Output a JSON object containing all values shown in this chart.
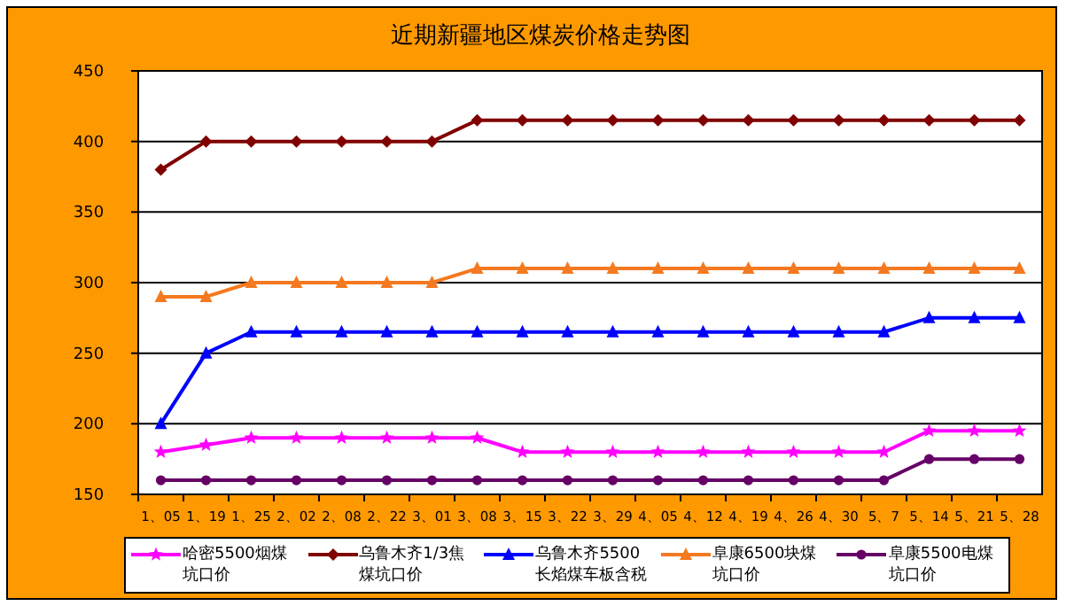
{
  "chart_data": {
    "type": "line",
    "title": "近期新疆地区煤炭价格走势图",
    "categories": [
      "1、05",
      "1、19",
      "1、25",
      "2、02",
      "2、08",
      "2、22",
      "3、01",
      "3、08",
      "3、15",
      "3、22",
      "3、29",
      "4、05",
      "4、12",
      "4、19",
      "4、26",
      "4、30",
      "5、7",
      "5、14",
      "5、21",
      "5、28"
    ],
    "series": [
      {
        "name": "哈密5500烟煤坑口价",
        "color": "#ff00ff",
        "marker": "star",
        "values": [
          180,
          185,
          190,
          190,
          190,
          190,
          190,
          190,
          180,
          180,
          180,
          180,
          180,
          180,
          180,
          180,
          180,
          195,
          195,
          195
        ]
      },
      {
        "name": "乌鲁木齐1/3焦煤坑口价",
        "color": "#800000",
        "marker": "diamond",
        "values": [
          380,
          400,
          400,
          400,
          400,
          400,
          400,
          415,
          415,
          415,
          415,
          415,
          415,
          415,
          415,
          415,
          415,
          415,
          415,
          415
        ]
      },
      {
        "name": "乌鲁木齐5500长焰煤车板含税",
        "color": "#0000ff",
        "marker": "triangle",
        "values": [
          200,
          250,
          265,
          265,
          265,
          265,
          265,
          265,
          265,
          265,
          265,
          265,
          265,
          265,
          265,
          265,
          265,
          275,
          275,
          275
        ]
      },
      {
        "name": "阜康6500块煤坑口价",
        "color": "#f47920",
        "marker": "triangle",
        "values": [
          290,
          290,
          300,
          300,
          300,
          300,
          300,
          310,
          310,
          310,
          310,
          310,
          310,
          310,
          310,
          310,
          310,
          310,
          310,
          310
        ]
      },
      {
        "name": "阜康5500电煤坑口价",
        "color": "#660066",
        "marker": "circle",
        "values": [
          160,
          160,
          160,
          160,
          160,
          160,
          160,
          160,
          160,
          160,
          160,
          160,
          160,
          160,
          160,
          160,
          160,
          175,
          175,
          175
        ]
      }
    ],
    "ylim": [
      150,
      450
    ],
    "yticks": [
      150,
      200,
      250,
      300,
      350,
      400,
      450
    ],
    "grid": "y",
    "legend": "bottom"
  }
}
